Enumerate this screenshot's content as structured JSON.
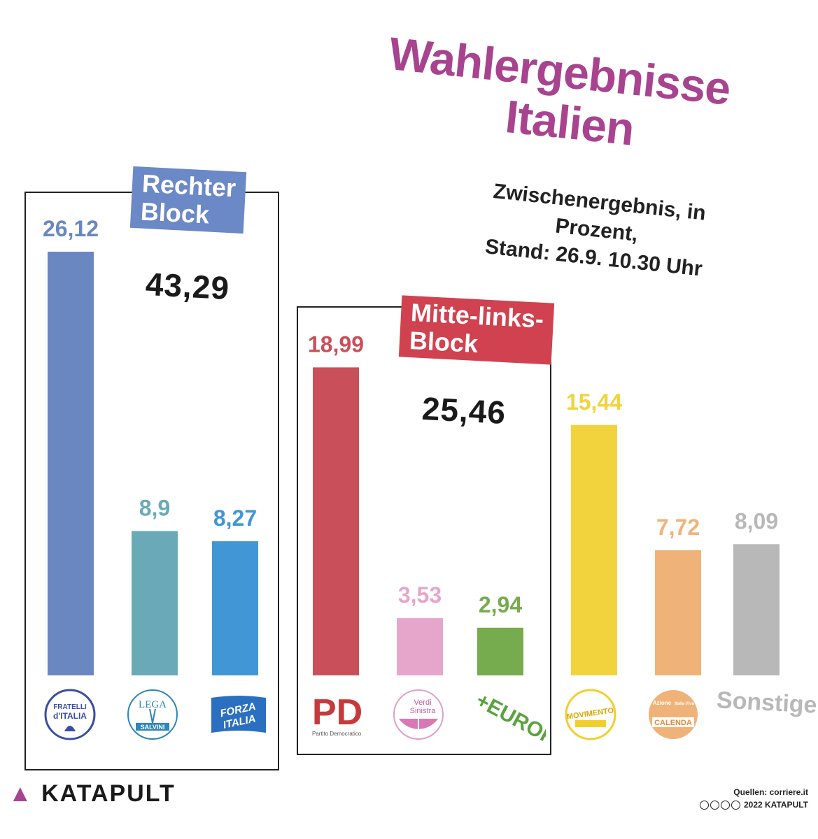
{
  "title_line1": "Wahlergebnisse",
  "title_line2": "Italien",
  "subtitle_line1": "Zwischenergebnis, in Prozent,",
  "subtitle_line2": "Stand: 26.9. 10.30 Uhr",
  "blocks": {
    "right": {
      "label_line1": "Rechter",
      "label_line2": "Block",
      "total": "43,29",
      "color": "#6b88c7"
    },
    "center_left": {
      "label_line1": "Mitte-links-",
      "label_line2": "Block",
      "total": "25,46",
      "color": "#d0424f"
    }
  },
  "chart_data": {
    "type": "bar",
    "title": "Wahlergebnisse Italien",
    "subtitle": "Zwischenergebnis, in Prozent, Stand: 26.9. 10.30 Uhr",
    "unit": "Prozent",
    "ylim": [
      0,
      26.12
    ],
    "categories": [
      "Fratelli d'Italia",
      "Lega",
      "Forza Italia",
      "PD",
      "Alleanza Verdi Sinistra",
      "+Europa",
      "Movimento 5 Stelle",
      "Azione Italia Viva Calenda",
      "Sonstige"
    ],
    "values": [
      26.12,
      8.9,
      8.27,
      18.99,
      3.53,
      2.94,
      15.44,
      7.72,
      8.09
    ],
    "value_labels": [
      "26,12",
      "8,9",
      "8,27",
      "18,99",
      "3,53",
      "2,94",
      "15,44",
      "7,72",
      "8,09"
    ],
    "colors": [
      "#6b87c2",
      "#6aaab8",
      "#4197d6",
      "#c9505a",
      "#e6a6cc",
      "#77ac4e",
      "#f2d33d",
      "#efb37a",
      "#b8b8b8"
    ],
    "label_colors": [
      "#6b87c2",
      "#6aaab8",
      "#4197d6",
      "#c9505a",
      "#e6a6cc",
      "#77ac4e",
      "#f2d33d",
      "#efb37a",
      "#b8b8b8"
    ]
  },
  "logos": {
    "fdi": [
      "FRATELLI",
      "d'ITALIA"
    ],
    "lega": [
      "LEGA",
      "SALVINI"
    ],
    "forza": [
      "FORZA",
      "ITALIA"
    ],
    "pd": [
      "PD",
      "Partito Democratico"
    ],
    "avs": [
      "Verdi",
      "Sinistra"
    ],
    "europa": "+EUROPA",
    "m5s": "MOVIMENTO",
    "azione": [
      "Azione",
      "Italia Viva",
      "CALENDA"
    ],
    "sonstige": "Sonstige"
  },
  "brand": "KATAPULT",
  "source_line1": "Quellen: corriere.it",
  "source_line2": "2022 KATAPULT"
}
